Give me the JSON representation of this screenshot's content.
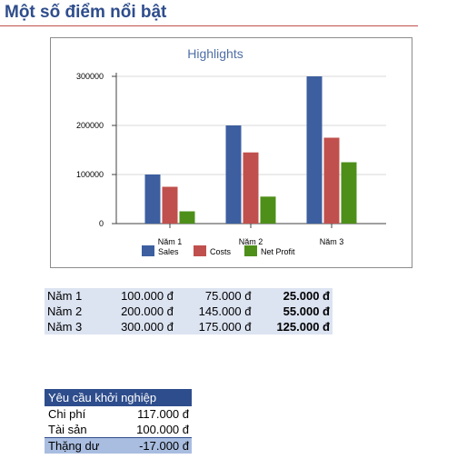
{
  "page": {
    "title": "Một số điểm nổi bật"
  },
  "chart_data": {
    "type": "bar",
    "title": "Highlights",
    "categories": [
      "Năm 1",
      "Năm 2",
      "Năm 3"
    ],
    "series": [
      {
        "name": "Sales",
        "values": [
          100000,
          200000,
          300000
        ],
        "color": "#3d5fa0"
      },
      {
        "name": "Costs",
        "values": [
          75000,
          145000,
          175000
        ],
        "color": "#c0504d"
      },
      {
        "name": "Net Profit",
        "values": [
          25000,
          55000,
          125000
        ],
        "color": "#4e8f1a"
      }
    ],
    "yticks": [
      "0",
      "100000",
      "200000",
      "300000"
    ],
    "ylim": [
      0,
      300000
    ],
    "grid": true,
    "legend": "bottom"
  },
  "summary_table": [
    {
      "label": "Năm 1",
      "sales": "100.000 đ",
      "costs": "75.000 đ",
      "profit": "25.000 đ"
    },
    {
      "label": "Năm 2",
      "sales": "200.000 đ",
      "costs": "145.000 đ",
      "profit": "55.000 đ"
    },
    {
      "label": "Năm 3",
      "sales": "300.000 đ",
      "costs": "175.000 đ",
      "profit": "125.000 đ"
    }
  ],
  "startup": {
    "header": "Yêu cầu khởi nghiệp",
    "rows": [
      {
        "label": "Chi phí",
        "value": "117.000 đ"
      },
      {
        "label": "Tài sản",
        "value": "100.000 đ"
      },
      {
        "label": "Thặng dư",
        "value": "-17.000 đ"
      }
    ]
  }
}
